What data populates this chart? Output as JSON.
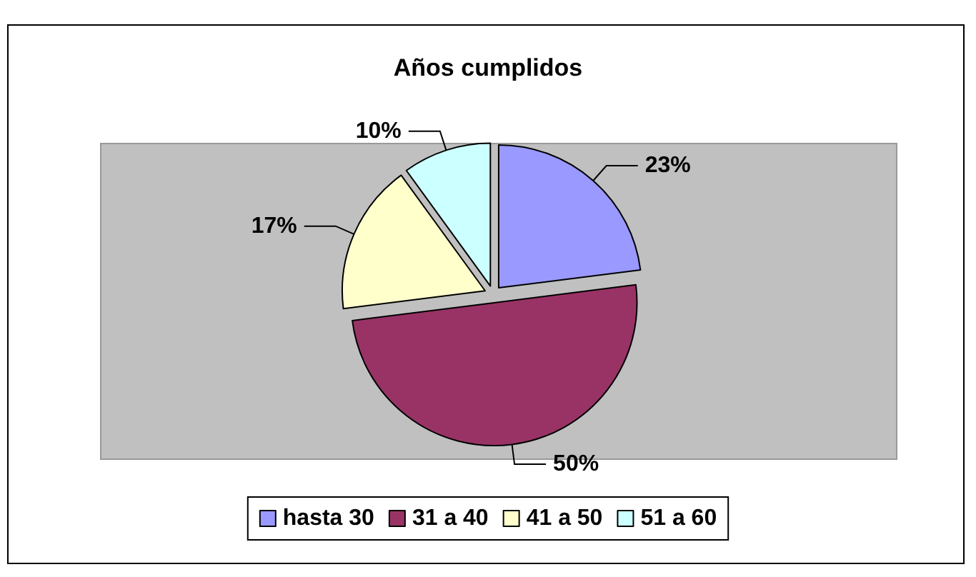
{
  "chart_data": {
    "type": "pie",
    "title": "Años cumplidos",
    "categories": [
      "hasta 30",
      "31 a 40",
      "41 a 50",
      "51 a 60"
    ],
    "values": [
      23,
      50,
      17,
      10
    ],
    "colors": [
      "#9999ff",
      "#993366",
      "#ffffcc",
      "#ccffff"
    ],
    "value_labels": [
      "23%",
      "50%",
      "17%",
      "10%"
    ],
    "legend": "bottom"
  }
}
